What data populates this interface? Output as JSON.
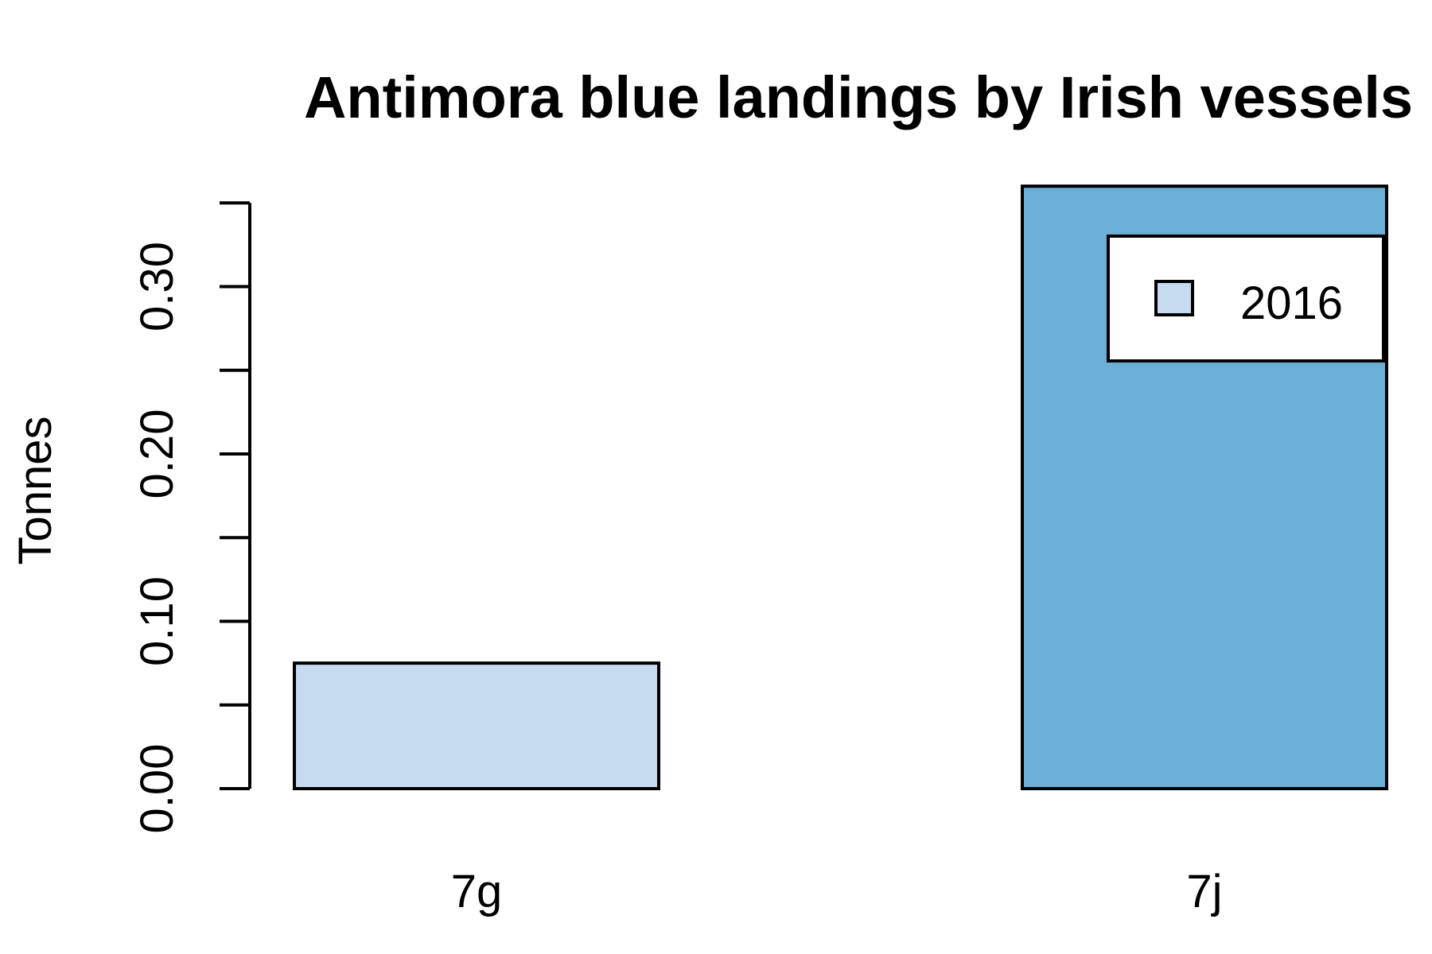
{
  "chart_data": {
    "type": "bar",
    "title": "Antimora blue landings by Irish vessels",
    "xlabel": "",
    "ylabel": "Tonnes",
    "categories": [
      "7g",
      "7j"
    ],
    "series": [
      {
        "name": "2016",
        "values": [
          0.075,
          0.36
        ],
        "colors": [
          "#c6dbef",
          "#6baed6"
        ]
      }
    ],
    "ylim": [
      0,
      0.35
    ],
    "y_ticks": [
      0.0,
      0.05,
      0.1,
      0.15,
      0.2,
      0.25,
      0.3,
      0.35
    ],
    "y_tick_labels": [
      {
        "value": 0.0,
        "label": "0.00"
      },
      {
        "value": 0.1,
        "label": "0.10"
      },
      {
        "value": 0.2,
        "label": "0.20"
      },
      {
        "value": 0.3,
        "label": "0.30"
      }
    ],
    "legend": {
      "position": "top-right",
      "entries": [
        {
          "label": "2016",
          "color": "#c6dbef"
        }
      ]
    },
    "grid": false,
    "bar_border_color": "#000000"
  }
}
